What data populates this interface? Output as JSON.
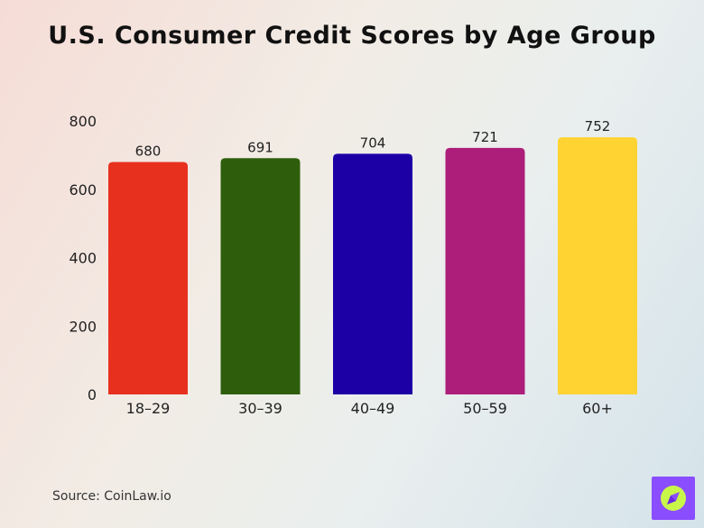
{
  "chart_data": {
    "type": "bar",
    "title": "U.S. Consumer Credit Scores by Age Group",
    "categories": [
      "18–29",
      "30–39",
      "40–49",
      "50–59",
      "60+"
    ],
    "values": [
      680,
      691,
      704,
      721,
      752
    ],
    "data_labels": [
      "680",
      "691",
      "704",
      "721",
      "752"
    ],
    "colors": [
      "#e8301f",
      "#2e5e0c",
      "#1c00a6",
      "#ac1e7a",
      "#ffd332"
    ],
    "ylim": [
      0,
      800
    ],
    "yticks": [
      0,
      200,
      400,
      600,
      800
    ],
    "ytick_labels": [
      "0",
      "200",
      "400",
      "600",
      "800"
    ],
    "grid": false,
    "legend": "none",
    "xlabel": "",
    "ylabel": ""
  },
  "source": "Source: CoinLaw.io",
  "logo": {
    "icon": "compass-icon",
    "background": "#8a4dff",
    "accent": "#c8f74a"
  }
}
